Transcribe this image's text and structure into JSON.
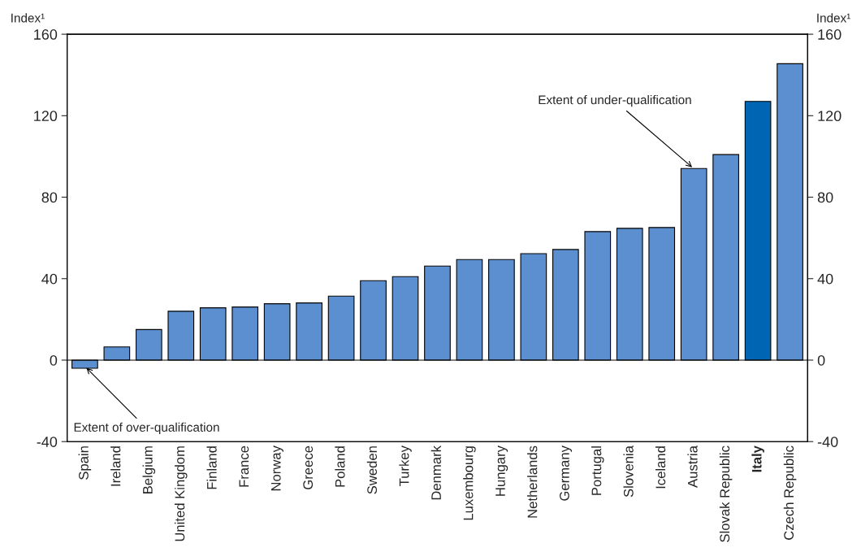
{
  "chart_data": {
    "type": "bar",
    "categories": [
      "Spain",
      "Ireland",
      "Belgium",
      "United Kingdom",
      "Finland",
      "France",
      "Norway",
      "Greece",
      "Poland",
      "Sweden",
      "Turkey",
      "Denmark",
      "Luxembourg",
      "Hungary",
      "Netherlands",
      "Germany",
      "Portugal",
      "Slovenia",
      "Iceland",
      "Austria",
      "Slovak Republic",
      "Italy",
      "Czech Republic"
    ],
    "values": [
      -4,
      6.5,
      15,
      24,
      25.7,
      26.1,
      27.7,
      28.1,
      31.4,
      39,
      41,
      46.2,
      49.4,
      49.4,
      52.3,
      54.3,
      63.1,
      64.7,
      65.1,
      94.1,
      100.9,
      127,
      145.5
    ],
    "colors": [
      "#5b8fcf",
      "#5b8fcf",
      "#5b8fcf",
      "#5b8fcf",
      "#5b8fcf",
      "#5b8fcf",
      "#5b8fcf",
      "#5b8fcf",
      "#5b8fcf",
      "#5b8fcf",
      "#5b8fcf",
      "#5b8fcf",
      "#5b8fcf",
      "#5b8fcf",
      "#5b8fcf",
      "#5b8fcf",
      "#5b8fcf",
      "#5b8fcf",
      "#5b8fcf",
      "#5b8fcf",
      "#5b8fcf",
      "#0066b3",
      "#5b8fcf"
    ],
    "ylabel": "Index¹",
    "y2label": "Index¹",
    "ylim": [
      -40,
      160
    ],
    "yticks": [
      {
        "value": -40,
        "label": "-40"
      },
      0,
      40,
      80,
      120,
      160
    ],
    "y2lim": [
      -40,
      160
    ],
    "y2ticks": [
      {
        "value": -40,
        "label": "-40"
      },
      0,
      40,
      80,
      120,
      160
    ],
    "ref_lines": [
      {
        "axis": "y",
        "value": 0,
        "color": "#000000"
      }
    ],
    "annotations": [
      {
        "text": "Extent of under-qualification",
        "x": "Austria",
        "y": 94
      },
      {
        "text": "Extent of over-qualification",
        "x": "Spain",
        "y": -3
      }
    ],
    "grid": false,
    "legend": false
  }
}
